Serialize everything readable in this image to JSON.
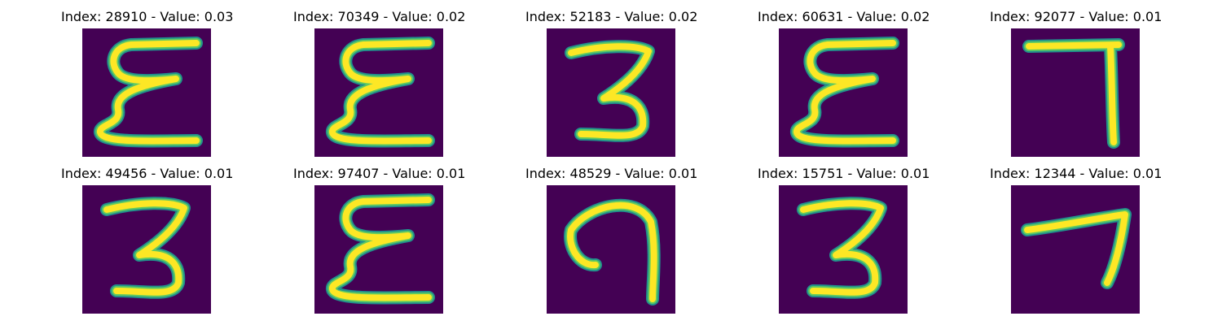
{
  "colors": {
    "background": "#440154",
    "edge": "#21918c",
    "mid": "#5ec962",
    "stroke": "#fde725"
  },
  "panels": [
    {
      "index": "28910",
      "value": "0.03",
      "title": "Index: 28910 - Value: 0.03",
      "glyph": "epsilon"
    },
    {
      "index": "70349",
      "value": "0.02",
      "title": "Index: 70349 - Value: 0.02",
      "glyph": "epsilon"
    },
    {
      "index": "52183",
      "value": "0.02",
      "title": "Index: 52183 - Value: 0.02",
      "glyph": "three"
    },
    {
      "index": "60631",
      "value": "0.02",
      "title": "Index: 60631 - Value: 0.02",
      "glyph": "epsilon"
    },
    {
      "index": "92077",
      "value": "0.01",
      "title": "Index: 92077 - Value: 0.01",
      "glyph": "seven"
    },
    {
      "index": "49456",
      "value": "0.01",
      "title": "Index: 49456 - Value: 0.01",
      "glyph": "three"
    },
    {
      "index": "97407",
      "value": "0.01",
      "title": "Index: 97407 - Value: 0.01",
      "glyph": "epsilon"
    },
    {
      "index": "48529",
      "value": "0.01",
      "title": "Index: 48529 - Value: 0.01",
      "glyph": "hook"
    },
    {
      "index": "15751",
      "value": "0.01",
      "title": "Index: 15751 - Value: 0.01",
      "glyph": "three"
    },
    {
      "index": "12344",
      "value": "0.01",
      "title": "Index: 12344 - Value: 0.01",
      "glyph": "seven-slanted"
    }
  ]
}
